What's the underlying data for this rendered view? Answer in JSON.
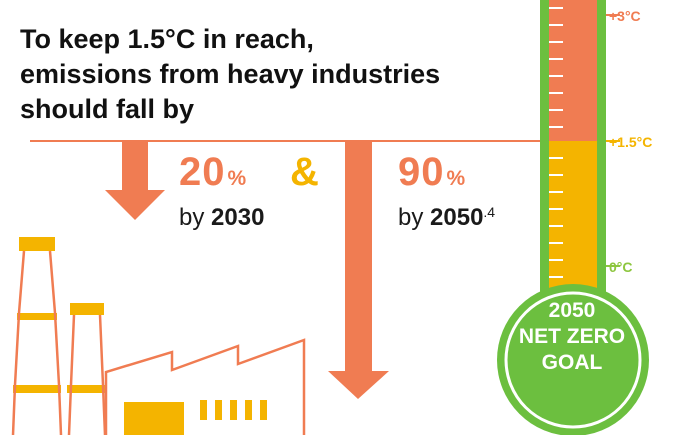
{
  "headline": {
    "line1": "To keep 1.5°C in reach,",
    "line2": "emissions from heavy industries",
    "line3": "should fall by"
  },
  "targets": [
    {
      "percent": "20",
      "percent_symbol": "%",
      "by_prefix": "by",
      "year": "2030",
      "note": ""
    },
    {
      "percent": "90",
      "percent_symbol": "%",
      "by_prefix": "by",
      "year": "2050",
      "note": ".4"
    }
  ],
  "ampersand": "&",
  "thermometer": {
    "labels": [
      "+3°C",
      "+1.5°C",
      "0°C"
    ],
    "goal": [
      "2050",
      "NET ZERO",
      "GOAL"
    ]
  },
  "colors": {
    "orange": "#f07c52",
    "yellow": "#f4b400",
    "green": "#6cbf3f",
    "label_green": "#8dc63f",
    "text": "#111111"
  }
}
